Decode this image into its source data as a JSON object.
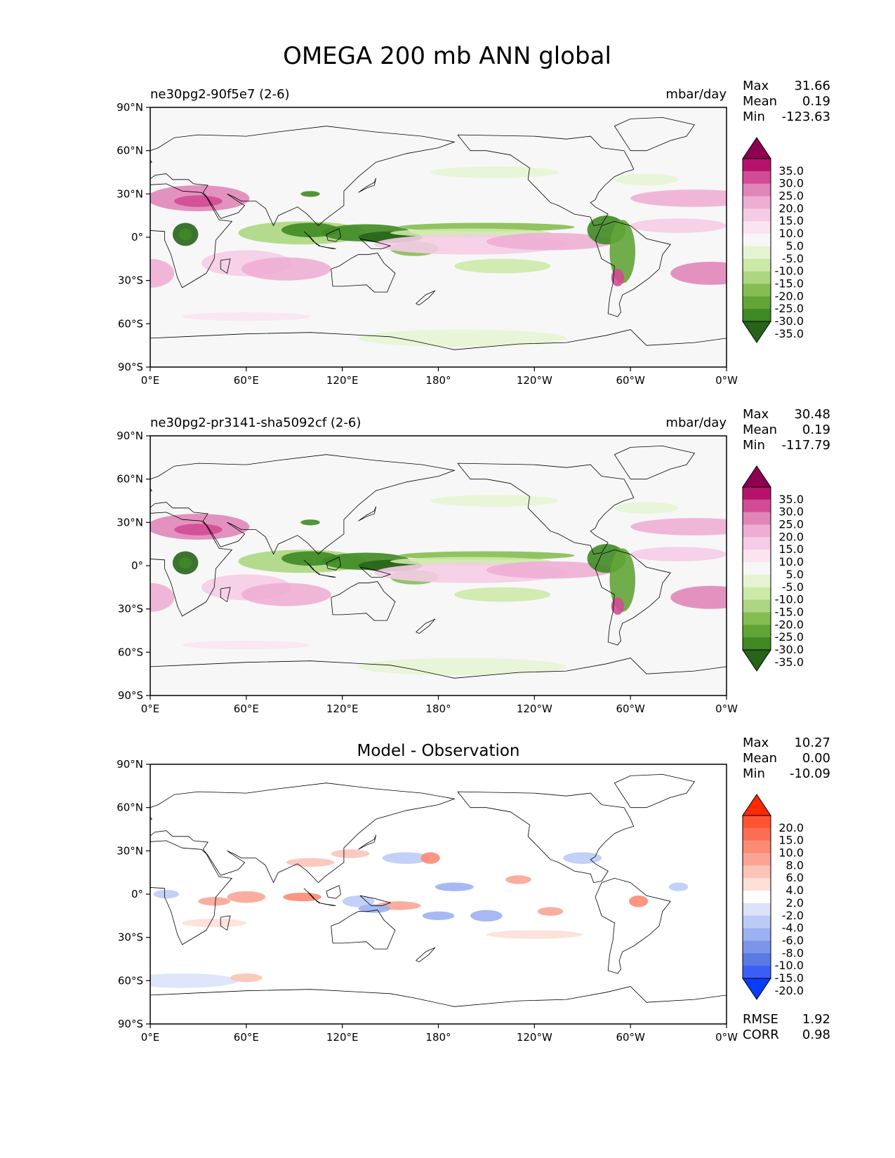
{
  "figure": {
    "title": "OMEGA 200 mb ANN global"
  },
  "axes": {
    "lat_ticks": [
      "90°N",
      "60°N",
      "30°N",
      "0°",
      "30°S",
      "60°S",
      "90°S"
    ],
    "lon_ticks": [
      "0°E",
      "60°E",
      "120°E",
      "180°",
      "120°W",
      "60°W",
      "0°W"
    ]
  },
  "chart_data": [
    {
      "type": "heatmap",
      "title": "ne30pg2-90f5e7 (2-6)",
      "units": "mbar/day",
      "stats": [
        {
          "label": "Max",
          "value": "31.66"
        },
        {
          "label": "Mean",
          "value": "0.19"
        },
        {
          "label": "Min",
          "value": "-123.63"
        }
      ],
      "colorbar": {
        "labels": [
          "35.0",
          "30.0",
          "25.0",
          "20.0",
          "15.0",
          "10.0",
          "5.0",
          "-5.0",
          "-10.0",
          "-15.0",
          "-20.0",
          "-25.0",
          "-30.0",
          "-35.0"
        ],
        "colors": [
          "#8e0152",
          "#b5136b",
          "#d24b94",
          "#e086b8",
          "#eeaed4",
          "#f5cce5",
          "#fae4f0",
          "#f7f7f7",
          "#e7f4d4",
          "#cde9a8",
          "#acd682",
          "#86bd52",
          "#62a436",
          "#3f8a23",
          "#276419"
        ]
      },
      "x_range": [
        0,
        360
      ],
      "y_range": [
        -90,
        90
      ]
    },
    {
      "type": "heatmap",
      "title": "ne30pg2-pr3141-sha5092cf (2-6)",
      "units": "mbar/day",
      "stats": [
        {
          "label": "Max",
          "value": "30.48"
        },
        {
          "label": "Mean",
          "value": "0.19"
        },
        {
          "label": "Min",
          "value": "-117.79"
        }
      ],
      "colorbar": {
        "labels": [
          "35.0",
          "30.0",
          "25.0",
          "20.0",
          "15.0",
          "10.0",
          "5.0",
          "-5.0",
          "-10.0",
          "-15.0",
          "-20.0",
          "-25.0",
          "-30.0",
          "-35.0"
        ],
        "colors": [
          "#8e0152",
          "#b5136b",
          "#d24b94",
          "#e086b8",
          "#eeaed4",
          "#f5cce5",
          "#fae4f0",
          "#f7f7f7",
          "#e7f4d4",
          "#cde9a8",
          "#acd682",
          "#86bd52",
          "#62a436",
          "#3f8a23",
          "#276419"
        ]
      },
      "x_range": [
        0,
        360
      ],
      "y_range": [
        -90,
        90
      ]
    },
    {
      "type": "heatmap",
      "title": "Model - Observation",
      "units": "",
      "stats": [
        {
          "label": "Max",
          "value": "10.27"
        },
        {
          "label": "Mean",
          "value": "0.00"
        },
        {
          "label": "Min",
          "value": "-10.09"
        }
      ],
      "metrics": [
        {
          "label": "RMSE",
          "value": "1.92"
        },
        {
          "label": "CORR",
          "value": "0.98"
        }
      ],
      "colorbar": {
        "labels": [
          "20.0",
          "15.0",
          "10.0",
          "8.0",
          "6.0",
          "4.0",
          "2.0",
          "-2.0",
          "-4.0",
          "-6.0",
          "-8.0",
          "-10.0",
          "-15.0",
          "-20.0"
        ],
        "colors": [
          "#ff2a00",
          "#ff5433",
          "#fc6e54",
          "#fb8b74",
          "#fba496",
          "#fcc3b8",
          "#fde0d8",
          "#ffffff",
          "#dbe2fa",
          "#bccbf6",
          "#9cb1f1",
          "#7b95ea",
          "#5a7ae4",
          "#3b5ff5",
          "#0a3cff"
        ]
      },
      "x_range": [
        0,
        360
      ],
      "y_range": [
        -90,
        90
      ]
    }
  ]
}
